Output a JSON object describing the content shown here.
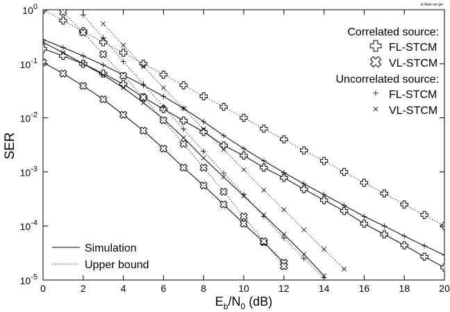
{
  "chart_data": {
    "type": "line",
    "corner_note": "st-4psk-ser.gle",
    "ylabel": "SER",
    "xlabel": {
      "parts": [
        "E",
        "b",
        "/N",
        "0",
        " (dB)"
      ],
      "subscripts": [
        1,
        3
      ]
    },
    "xlim": [
      0,
      20
    ],
    "xticks": [
      0,
      2,
      4,
      6,
      8,
      10,
      12,
      14,
      16,
      18,
      20
    ],
    "ylim": [
      1e-05,
      1
    ],
    "log_y": true,
    "yticks": [
      {
        "value": 1,
        "label": "10",
        "exponent": "0"
      },
      {
        "value": 0.1,
        "label": "10",
        "exponent": "-1"
      },
      {
        "value": 0.01,
        "label": "10",
        "exponent": "-2"
      },
      {
        "value": 0.001,
        "label": "10",
        "exponent": "-3"
      },
      {
        "value": 0.0001,
        "label": "10",
        "exponent": "-4"
      },
      {
        "value": 1e-05,
        "label": "10",
        "exponent": "-5"
      }
    ],
    "grid": false,
    "legend": {
      "corner": "top-right",
      "groups": [
        {
          "title": "Correlated source:",
          "entries": [
            {
              "label": "FL-STCM",
              "marker": "open-plus"
            },
            {
              "label": "VL-STCM",
              "marker": "open-x"
            }
          ]
        },
        {
          "title": "Uncorrelated source:",
          "entries": [
            {
              "label": "FL-STCM",
              "marker": "plus"
            },
            {
              "label": "VL-STCM",
              "marker": "x"
            }
          ]
        }
      ]
    },
    "line_legend": {
      "corner": "bottom-left",
      "entries": [
        {
          "label": "Simulation",
          "dash": "solid"
        },
        {
          "label": "Upper bound",
          "dash": "dotted"
        }
      ]
    },
    "series": [
      {
        "marker": "open-plus",
        "dash": "solid",
        "color": "#000000",
        "x": [
          0,
          1,
          2,
          3,
          4,
          5,
          6,
          7,
          8,
          9,
          10,
          11,
          12,
          13,
          14,
          15,
          16,
          17,
          18,
          19,
          20
        ],
        "values": [
          0.19,
          0.14,
          0.1,
          0.066,
          0.042,
          0.024,
          0.0145,
          0.0089,
          0.0055,
          0.0031,
          0.002,
          0.0012,
          0.00078,
          0.00048,
          0.0003,
          0.00019,
          0.00011,
          7e-05,
          4.4e-05,
          2.7e-05,
          1.7e-05
        ]
      },
      {
        "marker": "open-x",
        "dash": "solid",
        "color": "#000000",
        "x": [
          0,
          1,
          2,
          3,
          4,
          5,
          6,
          7,
          8,
          9,
          10,
          11,
          12
        ],
        "values": [
          0.106,
          0.066,
          0.039,
          0.022,
          0.0114,
          0.0058,
          0.0027,
          0.0012,
          0.00056,
          0.00025,
          0.00011,
          5e-05,
          2.1e-05
        ]
      },
      {
        "marker": "plus",
        "dash": "solid",
        "color": "#000000",
        "x": [
          0,
          1,
          2,
          3,
          4,
          5,
          6,
          7,
          8,
          9,
          10,
          11,
          12,
          13,
          14,
          15,
          16,
          17,
          18,
          19,
          20
        ],
        "values": [
          0.28,
          0.2,
          0.14,
          0.095,
          0.062,
          0.04,
          0.025,
          0.015,
          0.0085,
          0.0047,
          0.0027,
          0.0016,
          0.00097,
          0.0006,
          0.00038,
          0.00024,
          0.00015,
          0.0001,
          6.5e-05,
          4.3e-05,
          2.9e-05
        ]
      },
      {
        "marker": "x",
        "dash": "solid",
        "color": "#000000",
        "x": [
          0,
          1,
          2,
          3,
          4,
          5,
          6,
          7,
          8,
          9,
          10,
          11,
          12,
          13,
          14
        ],
        "values": [
          0.25,
          0.16,
          0.1,
          0.062,
          0.036,
          0.019,
          0.0095,
          0.0043,
          0.0018,
          0.0008,
          0.00036,
          0.00016,
          7e-05,
          3e-05,
          1.2e-05
        ]
      },
      {
        "marker": "open-plus",
        "dash": "dotted",
        "color": "#000000",
        "x": [
          0,
          1,
          2,
          3,
          4,
          5,
          6,
          7,
          8,
          9,
          10,
          11,
          12,
          13,
          14,
          15,
          16,
          17,
          18,
          19,
          20
        ],
        "values": [
          1,
          0.63,
          0.4,
          0.25,
          0.16,
          0.1,
          0.063,
          0.04,
          0.025,
          0.016,
          0.01,
          0.0063,
          0.004,
          0.0025,
          0.0016,
          0.001,
          0.00063,
          0.0004,
          0.00025,
          0.00016,
          0.0001
        ]
      },
      {
        "marker": "open-x",
        "dash": "dotted",
        "color": "#000000",
        "x": [
          1,
          2,
          3,
          4,
          5,
          6,
          7,
          8,
          9,
          10,
          11,
          12
        ],
        "values": [
          0.9,
          0.38,
          0.15,
          0.06,
          0.024,
          0.009,
          0.0033,
          0.0012,
          0.00043,
          0.00015,
          5.2e-05,
          1.8e-05
        ]
      },
      {
        "marker": "plus",
        "dash": "dotted",
        "color": "#000000",
        "x": [
          2,
          3,
          4,
          5,
          6,
          7,
          8,
          9,
          10,
          11,
          12,
          13,
          14
        ],
        "values": [
          0.8,
          0.3,
          0.11,
          0.042,
          0.016,
          0.0062,
          0.0024,
          0.00095,
          0.00038,
          0.00015,
          6e-05,
          2.5e-05,
          1.1e-05
        ]
      },
      {
        "marker": "x",
        "dash": "dotted",
        "color": "#000000",
        "x": [
          3,
          4,
          5,
          6,
          7,
          8,
          9,
          10,
          11,
          12,
          13,
          14,
          15
        ],
        "values": [
          0.55,
          0.22,
          0.09,
          0.036,
          0.015,
          0.0062,
          0.0026,
          0.0011,
          0.00046,
          0.0002,
          8.5e-05,
          3.7e-05,
          1.6e-05
        ]
      }
    ]
  }
}
